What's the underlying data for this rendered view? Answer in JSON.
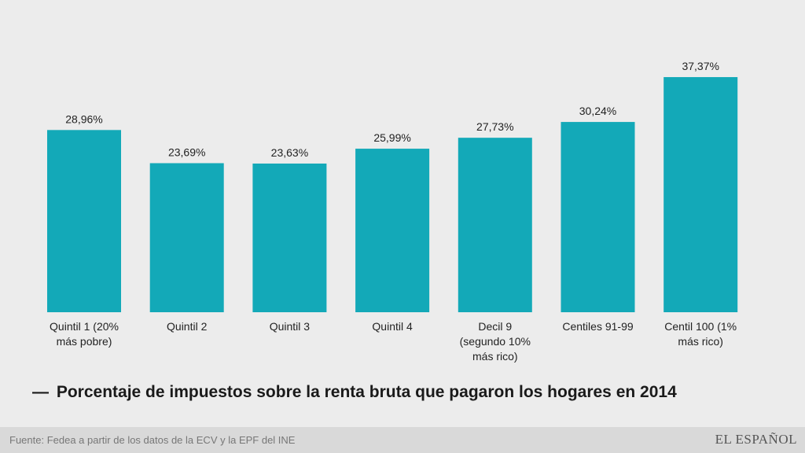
{
  "chart_data": {
    "type": "bar",
    "categories": [
      [
        "Quintil 1 (20%",
        "más pobre)"
      ],
      [
        "Quintil 2"
      ],
      [
        "Quintil 3"
      ],
      [
        "Quintil 4"
      ],
      [
        "Decil 9",
        "(segundo 10%",
        "más rico)"
      ],
      [
        "Centiles 91-99"
      ],
      [
        "Centil 100 (1%",
        "más rico)"
      ]
    ],
    "values": [
      28.96,
      23.69,
      23.63,
      25.99,
      27.73,
      30.24,
      37.37
    ],
    "value_labels": [
      "28,96%",
      "23,69%",
      "23,63%",
      "25,99%",
      "27,73%",
      "30,24%",
      "37,37%"
    ],
    "ylim": [
      0,
      40
    ],
    "grid": false,
    "bar_color": "#13a9b8"
  },
  "legend": {
    "dash": "—",
    "text": "Porcentaje de impuestos sobre la renta bruta que pagaron los hogares en 2014"
  },
  "footer": {
    "source": "Fuente: Fedea a partir de los datos de la ECV y la EPF del INE",
    "logo": "EL ESPAÑOL"
  }
}
